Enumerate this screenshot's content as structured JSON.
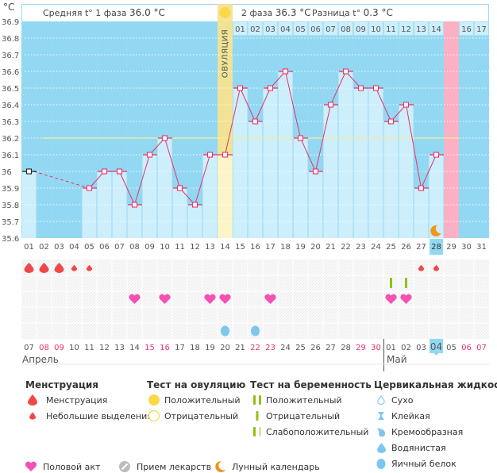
{
  "header": {
    "unit": "°C",
    "phase1_label": "Средняя t° 1 фаза",
    "phase1_value": "36.0 °C",
    "phase2_label": "2 фаза",
    "phase2_value": "36.3 °C",
    "diff_label": "Разница t°",
    "diff_value": "0.3 °C",
    "ovulation_label": "ОВУЛЯЦИЯ"
  },
  "colors": {
    "plot_bg": "#93d8f2",
    "bar_fill": "#cdeefb",
    "line": "#e8336b",
    "ovulation": "#f5e38f",
    "expected_period": "#fbb0c4",
    "coverline": "#f6ef9a",
    "today": "#93d8f2",
    "menstruation": "#f04848",
    "heart": "#f550b4",
    "pregnancy_test": "#8cc21a",
    "cervical_fluid": "#7cc6f0",
    "moon": "#f0961a",
    "weekend_text": "#e8336b"
  },
  "chart_data": {
    "type": "line",
    "title": "",
    "xlabel": "",
    "ylabel": "°C",
    "ylim": [
      35.6,
      36.9
    ],
    "yticks": [
      "36.9",
      "36.8",
      "36.7",
      "36.6",
      "36.5",
      "36.4",
      "36.3",
      "36.2",
      "36.1",
      "36",
      "35.9",
      "35.8",
      "35.7",
      "35.6"
    ],
    "cycle_days": [
      "01",
      "02",
      "03",
      "04",
      "05",
      "06",
      "07",
      "08",
      "09",
      "10",
      "11",
      "12",
      "13",
      "14",
      "15",
      "16",
      "17",
      "18",
      "19",
      "20",
      "21",
      "22",
      "23",
      "24",
      "25",
      "26",
      "27",
      "28",
      "29",
      "30",
      "31"
    ],
    "temperatures": [
      36.0,
      null,
      null,
      null,
      35.9,
      36.0,
      36.0,
      35.8,
      36.1,
      36.2,
      35.9,
      35.8,
      36.1,
      36.1,
      36.5,
      36.3,
      36.5,
      36.6,
      36.2,
      36.0,
      36.4,
      36.6,
      36.5,
      36.5,
      36.3,
      36.4,
      35.9,
      36.1,
      null,
      null,
      null
    ],
    "first_point_style": "excluded",
    "coverline": 36.2,
    "ovulation_day": 14,
    "expected_period_day": 29,
    "today_day": 28,
    "luteal_days": [
      "01",
      "02",
      "03",
      "04",
      "05",
      "06",
      "07",
      "08",
      "09",
      "10",
      "11",
      "12",
      "13",
      "14",
      "15",
      "16",
      "17"
    ],
    "luteal_highlight_day": "15",
    "calendar_dates": [
      "07",
      "08",
      "09",
      "10",
      "11",
      "12",
      "13",
      "14",
      "15",
      "16",
      "17",
      "18",
      "19",
      "20",
      "21",
      "22",
      "23",
      "24",
      "25",
      "26",
      "27",
      "28",
      "29",
      "30",
      "01",
      "02",
      "03",
      "04",
      "05",
      "06",
      "07"
    ],
    "calendar_weekend": [
      false,
      true,
      true,
      false,
      false,
      false,
      false,
      false,
      true,
      true,
      false,
      false,
      false,
      false,
      false,
      true,
      true,
      false,
      false,
      false,
      false,
      false,
      true,
      true,
      false,
      false,
      false,
      false,
      false,
      true,
      true
    ],
    "months": [
      {
        "label": "Апрель",
        "start_day": 1
      },
      {
        "label": "Май",
        "start_day": 25
      }
    ],
    "events": {
      "menstruation": [
        1,
        2,
        3
      ],
      "spotting": [
        4,
        5,
        27,
        28
      ],
      "pregnancy_test_negative": [
        25,
        26
      ],
      "intercourse": [
        8,
        10,
        13,
        14,
        17,
        25,
        26
      ],
      "cervical_egg_white": [
        14,
        16
      ],
      "moon": [
        28
      ]
    }
  },
  "legend": {
    "menstruation": {
      "title": "Менструация",
      "items": [
        "Менструация",
        "Небольшие выделения"
      ]
    },
    "ovulation_test": {
      "title": "Тест на овуляцию",
      "items": [
        "Положительный",
        "Отрицательный"
      ]
    },
    "pregnancy_test": {
      "title": "Тест на беременность",
      "items": [
        "Положительный",
        "Отрицательный",
        "Слабоположительный"
      ]
    },
    "cervical_fluid": {
      "title": "Цервикальная жидкость",
      "items": [
        "Сухо",
        "Клейкая",
        "Кремообразная",
        "Водянистая",
        "Яичный белок"
      ]
    },
    "other": [
      "Половой акт",
      "Прием лекарств",
      "Лунный календарь"
    ]
  }
}
